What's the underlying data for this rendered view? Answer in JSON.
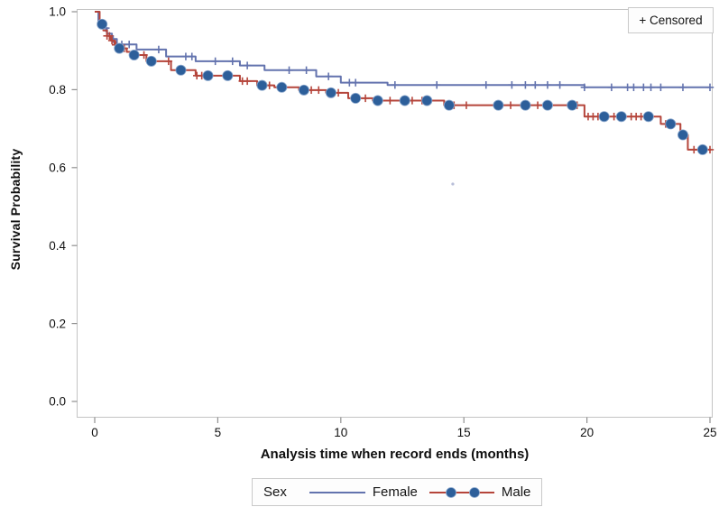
{
  "chart_data": {
    "type": "line",
    "subtype": "kaplan-meier-step",
    "title": "",
    "xlabel": "Analysis time when record ends (months)",
    "ylabel": "Survival Probability",
    "xlim": [
      0,
      25
    ],
    "ylim": [
      0.0,
      1.0
    ],
    "grid": false,
    "x_ticks": [
      {
        "value": 0,
        "label": "0"
      },
      {
        "value": 5,
        "label": "5"
      },
      {
        "value": 10,
        "label": "10"
      },
      {
        "value": 15,
        "label": "15"
      },
      {
        "value": 20,
        "label": "20"
      },
      {
        "value": 25,
        "label": "25"
      }
    ],
    "y_ticks": [
      {
        "value": 0.0,
        "label": "0.0"
      },
      {
        "value": 0.2,
        "label": "0.2"
      },
      {
        "value": 0.4,
        "label": "0.4"
      },
      {
        "value": 0.6,
        "label": "0.6"
      },
      {
        "value": 0.8,
        "label": "0.8"
      },
      {
        "value": 1.0,
        "label": "1.0"
      }
    ],
    "censored_legend_label": "+ Censored",
    "legend": {
      "title": "Sex",
      "position": "bottom-center",
      "entries": [
        {
          "name": "Female",
          "color": "#6373ae",
          "marker": "none"
        },
        {
          "name": "Male",
          "color": "#b5453b",
          "marker": "filled-circle",
          "marker_color": "#2d5f9a"
        }
      ]
    },
    "series": [
      {
        "name": "Female",
        "color": "#6373ae",
        "steps": [
          [
            0,
            1.0
          ],
          [
            0.15,
            0.972
          ],
          [
            0.3,
            0.958
          ],
          [
            0.5,
            0.944
          ],
          [
            0.7,
            0.93
          ],
          [
            0.9,
            0.916
          ],
          [
            1.7,
            0.903
          ],
          [
            2.9,
            0.885
          ],
          [
            4.1,
            0.873
          ],
          [
            5.9,
            0.862
          ],
          [
            6.9,
            0.85
          ],
          [
            9.0,
            0.834
          ],
          [
            10.0,
            0.818
          ],
          [
            11.9,
            0.812
          ],
          [
            19.9,
            0.806
          ]
        ],
        "end_time": 25.0,
        "censor_times": [
          0.45,
          0.75,
          1.1,
          1.4,
          2.6,
          3.7,
          3.95,
          4.9,
          5.6,
          6.2,
          7.9,
          8.6,
          9.5,
          10.35,
          10.6,
          12.2,
          13.9,
          15.9,
          16.95,
          17.5,
          17.9,
          18.4,
          18.9,
          19.9,
          21.0,
          21.65,
          21.9,
          22.3,
          22.6,
          23.0,
          23.9,
          25.0
        ],
        "marker_times": []
      },
      {
        "name": "Male",
        "color": "#b5453b",
        "marker_color": "#2d5f9a",
        "steps": [
          [
            0,
            1.0
          ],
          [
            0.2,
            0.968
          ],
          [
            0.35,
            0.952
          ],
          [
            0.5,
            0.938
          ],
          [
            0.65,
            0.926
          ],
          [
            0.8,
            0.915
          ],
          [
            1.0,
            0.906
          ],
          [
            1.3,
            0.897
          ],
          [
            1.6,
            0.889
          ],
          [
            2.1,
            0.873
          ],
          [
            3.1,
            0.85
          ],
          [
            4.1,
            0.836
          ],
          [
            5.9,
            0.822
          ],
          [
            6.6,
            0.811
          ],
          [
            7.3,
            0.806
          ],
          [
            8.3,
            0.799
          ],
          [
            9.4,
            0.792
          ],
          [
            10.3,
            0.778
          ],
          [
            11.3,
            0.772
          ],
          [
            14.2,
            0.76
          ],
          [
            19.9,
            0.731
          ],
          [
            23.0,
            0.712
          ],
          [
            23.8,
            0.684
          ],
          [
            24.1,
            0.646
          ]
        ],
        "end_time": 25.05,
        "censor_times": [
          0.5,
          0.6,
          0.7,
          0.85,
          1.2,
          2.0,
          3.0,
          4.15,
          4.35,
          6.0,
          6.2,
          7.1,
          8.8,
          9.1,
          9.9,
          11.0,
          12.0,
          12.9,
          13.3,
          14.6,
          15.1,
          16.9,
          18.0,
          19.6,
          20.05,
          20.25,
          20.45,
          21.1,
          21.8,
          22.0,
          22.2,
          23.2,
          24.35,
          24.6,
          25.0
        ],
        "marker_times": [
          0.3,
          1.0,
          1.6,
          2.3,
          3.5,
          4.6,
          5.4,
          6.8,
          7.6,
          8.5,
          9.6,
          10.6,
          11.5,
          12.6,
          13.5,
          14.4,
          16.4,
          17.5,
          18.4,
          19.4,
          20.7,
          21.4,
          22.5,
          23.4,
          23.9,
          24.7
        ]
      }
    ],
    "stray_point": {
      "t": 14.55,
      "s": 0.558,
      "color": "#9aa3c9"
    },
    "frame_color": "#c4c4c4",
    "tick_color": "#8f8f8f",
    "tick_label_color": "#111111"
  }
}
